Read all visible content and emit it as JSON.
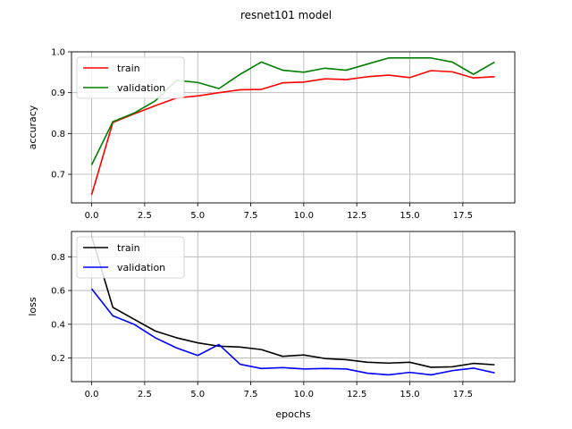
{
  "figure": {
    "title": "resnet101 model"
  },
  "chart_data": [
    {
      "type": "line",
      "xlabel": "",
      "ylabel": "accuracy",
      "xlim": [
        -0.95,
        19.95
      ],
      "ylim": [
        0.63,
        1.0
      ],
      "xticks": [
        0.0,
        2.5,
        5.0,
        7.5,
        10.0,
        12.5,
        15.0,
        17.5
      ],
      "yticks": [
        0.7,
        0.8,
        0.9,
        1.0
      ],
      "grid": true,
      "legend": "top-left",
      "x": [
        0,
        1,
        2,
        3,
        4,
        5,
        6,
        7,
        8,
        9,
        10,
        11,
        12,
        13,
        14,
        15,
        16,
        17,
        18,
        19
      ],
      "series": [
        {
          "name": "train",
          "color": "#ff0000",
          "values": [
            0.65,
            0.827,
            0.848,
            0.868,
            0.887,
            0.892,
            0.9,
            0.907,
            0.908,
            0.924,
            0.926,
            0.934,
            0.932,
            0.939,
            0.943,
            0.937,
            0.954,
            0.951,
            0.936,
            0.939
          ]
        },
        {
          "name": "validation",
          "color": "#008000",
          "values": [
            0.723,
            0.829,
            0.85,
            0.88,
            0.93,
            0.925,
            0.91,
            0.945,
            0.975,
            0.955,
            0.95,
            0.96,
            0.955,
            0.97,
            0.985,
            0.985,
            0.985,
            0.975,
            0.945,
            0.975
          ]
        }
      ]
    },
    {
      "type": "line",
      "xlabel": "epochs",
      "ylabel": "loss",
      "xlim": [
        -0.95,
        19.95
      ],
      "ylim": [
        0.06,
        0.95
      ],
      "xticks": [
        0.0,
        2.5,
        5.0,
        7.5,
        10.0,
        12.5,
        15.0,
        17.5
      ],
      "yticks": [
        0.2,
        0.4,
        0.6,
        0.8
      ],
      "grid": true,
      "legend": "top-left",
      "x": [
        0,
        1,
        2,
        3,
        4,
        5,
        6,
        7,
        8,
        9,
        10,
        11,
        12,
        13,
        14,
        15,
        16,
        17,
        18,
        19
      ],
      "series": [
        {
          "name": "train",
          "color": "#000000",
          "values": [
            0.92,
            0.5,
            0.43,
            0.36,
            0.32,
            0.29,
            0.27,
            0.265,
            0.25,
            0.21,
            0.218,
            0.197,
            0.19,
            0.175,
            0.17,
            0.175,
            0.145,
            0.148,
            0.168,
            0.16
          ]
        },
        {
          "name": "validation",
          "color": "#0000ff",
          "values": [
            0.61,
            0.45,
            0.4,
            0.32,
            0.26,
            0.215,
            0.28,
            0.163,
            0.138,
            0.143,
            0.135,
            0.138,
            0.135,
            0.11,
            0.1,
            0.115,
            0.1,
            0.125,
            0.14,
            0.112
          ]
        }
      ]
    }
  ]
}
